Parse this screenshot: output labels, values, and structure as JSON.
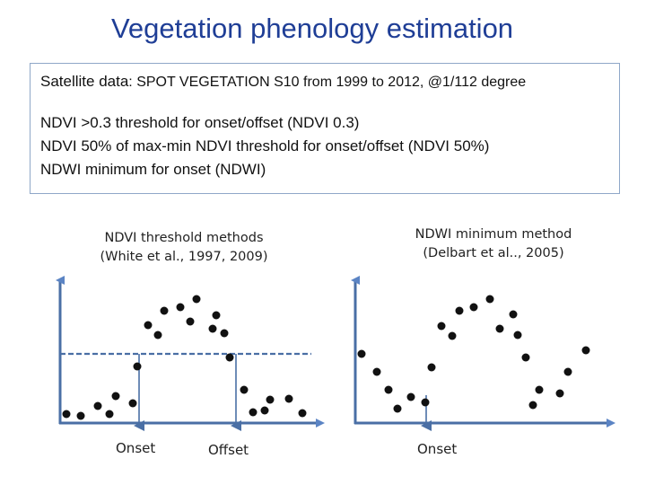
{
  "title": "Vegetation phenology estimation",
  "satellite": {
    "label": "Satellite data",
    "text": ": SPOT VEGETATION S10 from 1999 to 2012, @1/112 degree"
  },
  "methods": [
    "NDVI >0.3 threshold for onset/offset (NDVI 0.3)",
    "NDVI 50% of max-min NDVI threshold for onset/offset (NDVI 50%)",
    "NDWI minimum for onset (NDWI)"
  ],
  "left_panel": {
    "caption_line1": "NDVI threshold methods",
    "caption_line2": "(White et al., 1997, 2009)",
    "onset_label": "Onset",
    "offset_label": "Offset"
  },
  "right_panel": {
    "caption_line1": "NDWI minimum method",
    "caption_line2": "(Delbart et al.., 2005)",
    "onset_label": "Onset"
  },
  "colors": {
    "title": "#1f3e96",
    "axis": "#4a6fa5",
    "marker": "#5b84c4",
    "point": "#111111",
    "box_border": "#8fa7c8"
  }
}
